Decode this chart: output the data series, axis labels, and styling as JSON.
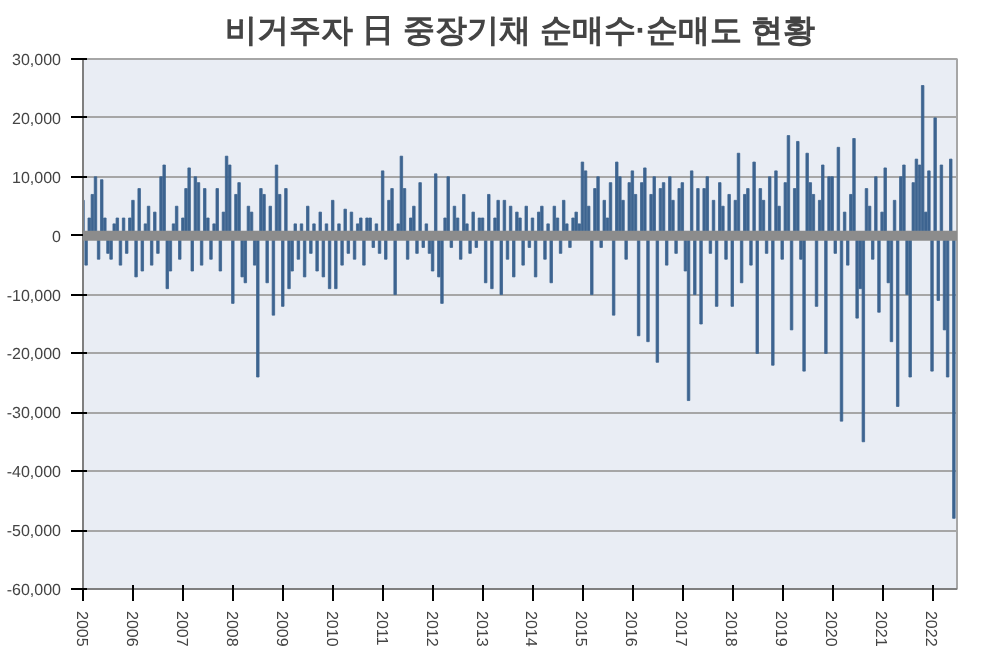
{
  "chart_data": {
    "type": "bar",
    "title": "비거주자 日 중장기채 순매수·순매도 현황",
    "x": [
      2005,
      2005.0625,
      2005.125,
      2005.1875,
      2005.25,
      2005.3125,
      2005.375,
      2005.4375,
      2005.5,
      2005.5625,
      2005.625,
      2005.6875,
      2005.75,
      2005.8125,
      2005.875,
      2005.9375,
      2006,
      2006.0625,
      2006.125,
      2006.1875,
      2006.25,
      2006.3125,
      2006.375,
      2006.4375,
      2006.5,
      2006.5625,
      2006.625,
      2006.6875,
      2006.75,
      2006.8125,
      2006.875,
      2006.9375,
      2007,
      2007.0625,
      2007.125,
      2007.1875,
      2007.25,
      2007.3125,
      2007.375,
      2007.4375,
      2007.5,
      2007.5625,
      2007.625,
      2007.6875,
      2007.75,
      2007.8125,
      2007.875,
      2007.9375,
      2008,
      2008.0625,
      2008.125,
      2008.1875,
      2008.25,
      2008.3125,
      2008.375,
      2008.4375,
      2008.5,
      2008.5625,
      2008.625,
      2008.6875,
      2008.75,
      2008.8125,
      2008.875,
      2008.9375,
      2009,
      2009.0625,
      2009.125,
      2009.1875,
      2009.25,
      2009.3125,
      2009.375,
      2009.4375,
      2009.5,
      2009.5625,
      2009.625,
      2009.6875,
      2009.75,
      2009.8125,
      2009.875,
      2009.9375,
      2010,
      2010.0625,
      2010.125,
      2010.1875,
      2010.25,
      2010.3125,
      2010.375,
      2010.4375,
      2010.5,
      2010.5625,
      2010.625,
      2010.6875,
      2010.75,
      2010.8125,
      2010.875,
      2010.9375,
      2011,
      2011.0625,
      2011.125,
      2011.1875,
      2011.25,
      2011.3125,
      2011.375,
      2011.4375,
      2011.5,
      2011.5625,
      2011.625,
      2011.6875,
      2011.75,
      2011.8125,
      2011.875,
      2011.9375,
      2012,
      2012.0625,
      2012.125,
      2012.1875,
      2012.25,
      2012.3125,
      2012.375,
      2012.4375,
      2012.5,
      2012.5625,
      2012.625,
      2012.6875,
      2012.75,
      2012.8125,
      2012.875,
      2012.9375,
      2013,
      2013.0625,
      2013.125,
      2013.1875,
      2013.25,
      2013.3125,
      2013.375,
      2013.4375,
      2013.5,
      2013.5625,
      2013.625,
      2013.6875,
      2013.75,
      2013.8125,
      2013.875,
      2013.9375,
      2014,
      2014.0625,
      2014.125,
      2014.1875,
      2014.25,
      2014.3125,
      2014.375,
      2014.4375,
      2014.5,
      2014.5625,
      2014.625,
      2014.6875,
      2014.75,
      2014.8125,
      2014.875,
      2014.9375,
      2015,
      2015.0625,
      2015.125,
      2015.1875,
      2015.25,
      2015.3125,
      2015.375,
      2015.4375,
      2015.5,
      2015.5625,
      2015.625,
      2015.6875,
      2015.75,
      2015.8125,
      2015.875,
      2015.9375,
      2016,
      2016.0625,
      2016.125,
      2016.1875,
      2016.25,
      2016.3125,
      2016.375,
      2016.4375,
      2016.5,
      2016.5625,
      2016.625,
      2016.6875,
      2016.75,
      2016.8125,
      2016.875,
      2016.9375,
      2017,
      2017.0625,
      2017.125,
      2017.1875,
      2017.25,
      2017.3125,
      2017.375,
      2017.4375,
      2017.5,
      2017.5625,
      2017.625,
      2017.6875,
      2017.75,
      2017.8125,
      2017.875,
      2017.9375,
      2018,
      2018.0625,
      2018.125,
      2018.1875,
      2018.25,
      2018.3125,
      2018.375,
      2018.4375,
      2018.5,
      2018.5625,
      2018.625,
      2018.6875,
      2018.75,
      2018.8125,
      2018.875,
      2018.9375,
      2019,
      2019.0625,
      2019.125,
      2019.1875,
      2019.25,
      2019.3125,
      2019.375,
      2019.4375,
      2019.5,
      2019.5625,
      2019.625,
      2019.6875,
      2019.75,
      2019.8125,
      2019.875,
      2019.9375,
      2020,
      2020.0625,
      2020.125,
      2020.1875,
      2020.25,
      2020.3125,
      2020.375,
      2020.4375,
      2020.5,
      2020.5625,
      2020.625,
      2020.6875,
      2020.75,
      2020.8125,
      2020.875,
      2020.9375,
      2021,
      2021.0625,
      2021.125,
      2021.1875,
      2021.25,
      2021.3125,
      2021.375,
      2021.4375,
      2021.5,
      2021.5625,
      2021.625,
      2021.6875,
      2021.75,
      2021.8125,
      2021.875,
      2021.9375,
      2022,
      2022.0625,
      2022.125,
      2022.1875,
      2022.25,
      2022.3125,
      2022.375,
      2022.4375
    ],
    "values": [
      6000,
      -5000,
      3000,
      7000,
      10000,
      -4000,
      9500,
      3000,
      -3000,
      -4000,
      2000,
      3000,
      -5000,
      3000,
      -3000,
      3000,
      6000,
      -7000,
      8000,
      -6000,
      2000,
      5000,
      -5000,
      4000,
      -3000,
      10000,
      12000,
      -9000,
      -6000,
      2000,
      5000,
      -4000,
      3000,
      8000,
      11500,
      -6000,
      10000,
      9000,
      -5000,
      8000,
      3000,
      -4000,
      2000,
      8000,
      -6000,
      4000,
      13500,
      12000,
      -11500,
      7000,
      9000,
      -7000,
      -8000,
      5000,
      4000,
      -5000,
      -24000,
      8000,
      7000,
      -8000,
      5000,
      -13500,
      12000,
      7000,
      -12000,
      8000,
      -9000,
      -6000,
      2000,
      -4000,
      2000,
      -7000,
      5000,
      -3000,
      2000,
      -6000,
      4000,
      -7000,
      2000,
      -9000,
      6000,
      -9000,
      2000,
      -5000,
      4500,
      -3000,
      4000,
      -4000,
      2000,
      3000,
      -5000,
      3000,
      3000,
      -2000,
      2000,
      -3000,
      11000,
      -4000,
      6000,
      8000,
      -10000,
      2000,
      13500,
      8000,
      -4000,
      3000,
      5000,
      -3000,
      9000,
      -2000,
      2000,
      -3000,
      -6000,
      10500,
      -7000,
      -11500,
      3000,
      10000,
      -2000,
      5000,
      3000,
      -4000,
      7000,
      2000,
      -3000,
      4000,
      -2000,
      3000,
      3000,
      -8000,
      7000,
      -9000,
      3000,
      6000,
      -10000,
      6000,
      -4000,
      5000,
      -7000,
      4000,
      3000,
      -5000,
      5000,
      -2000,
      3000,
      -7000,
      4000,
      5000,
      -4000,
      2000,
      -8000,
      5000,
      3000,
      -3000,
      6000,
      2000,
      -2000,
      3000,
      4000,
      2000,
      12500,
      11000,
      5000,
      -10000,
      8000,
      10000,
      -2000,
      6000,
      3000,
      9000,
      -13500,
      12500,
      10000,
      6000,
      -4000,
      9000,
      11000,
      7000,
      -17000,
      9000,
      11500,
      -18000,
      7000,
      10000,
      -21500,
      8000,
      9000,
      -5000,
      10000,
      6000,
      -3000,
      8000,
      9000,
      -6000,
      -28000,
      11000,
      -10000,
      8000,
      -15000,
      8000,
      10000,
      -3000,
      6000,
      -12000,
      9000,
      5000,
      -4000,
      7000,
      -12000,
      6000,
      14000,
      -8000,
      7000,
      8000,
      -5000,
      12500,
      -20000,
      8000,
      6000,
      -3000,
      10000,
      -22000,
      11000,
      5000,
      -4000,
      9000,
      17000,
      -16000,
      8000,
      16000,
      -4000,
      -23000,
      14000,
      9000,
      7000,
      -12000,
      6000,
      12000,
      -20000,
      10000,
      10000,
      -3000,
      15000,
      -31500,
      4000,
      -5000,
      7000,
      16500,
      -14000,
      -9000,
      -35000,
      8000,
      5000,
      -4000,
      10000,
      -13000,
      4000,
      11500,
      -8000,
      -18000,
      6000,
      -29000,
      10000,
      12000,
      -10000,
      -24000,
      9000,
      13000,
      12000,
      25500,
      4000,
      11000,
      -23000,
      20000,
      -11000,
      12000,
      -16000,
      -24000,
      13000,
      -48000
    ],
    "color": "#3d6490",
    "xlim": [
      2005,
      2022.5
    ],
    "xticks": [
      2005,
      2006,
      2007,
      2008,
      2009,
      2010,
      2011,
      2012,
      2013,
      2014,
      2015,
      2016,
      2017,
      2018,
      2019,
      2020,
      2021,
      2022
    ],
    "ylim": [
      -60000,
      30000
    ],
    "yticks": [
      {
        "value": -60000,
        "label": "-60,000"
      },
      {
        "value": -50000,
        "label": "-50,000"
      },
      {
        "value": -40000,
        "label": "-40,000"
      },
      {
        "value": -30000,
        "label": "-30,000"
      },
      {
        "value": -20000,
        "label": "-20,000"
      },
      {
        "value": -10000,
        "label": "-10,000"
      },
      {
        "value": 0,
        "label": "0"
      },
      {
        "value": 10000,
        "label": "10,000"
      },
      {
        "value": 20000,
        "label": "20,000"
      },
      {
        "value": 30000,
        "label": "30,000"
      }
    ],
    "ref_lines": [
      {
        "axis": "y",
        "value": 0,
        "color": "#8c8c8c"
      }
    ],
    "grid": "y"
  }
}
